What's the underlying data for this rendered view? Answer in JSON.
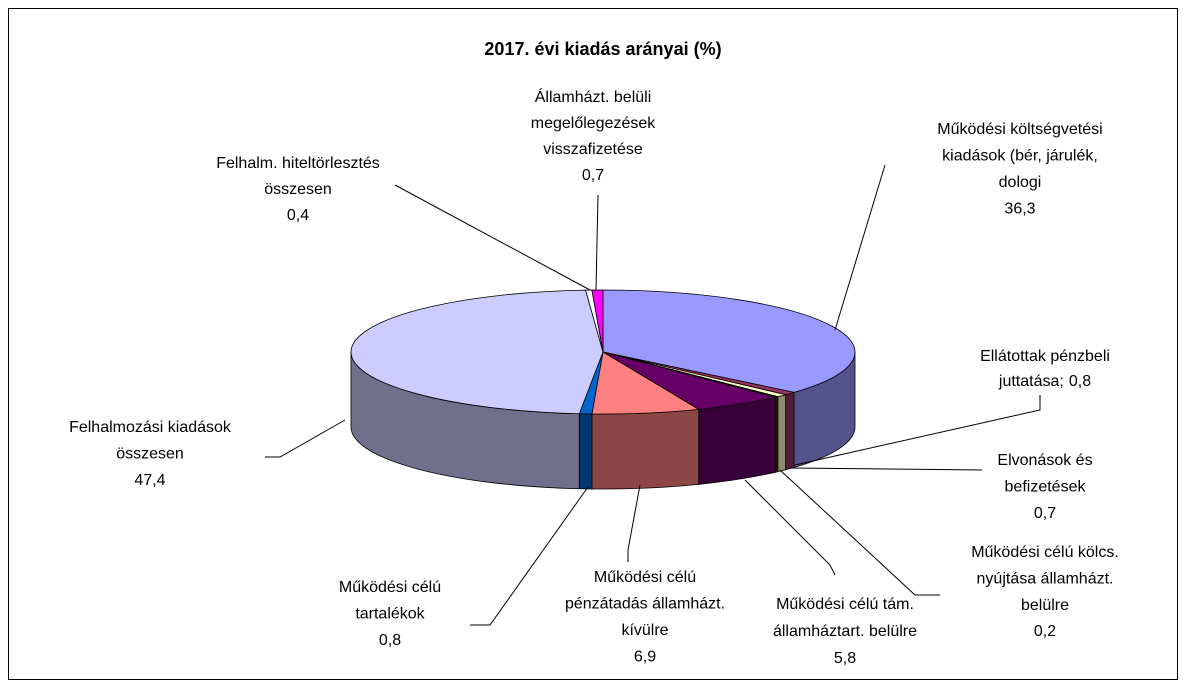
{
  "chart_data": {
    "type": "pie3d",
    "title": "2017. évi kiadás arányai (%)",
    "categories": [
      [
        "Működési költségvetési",
        "kiadások (bér, járulék,",
        "dologi"
      ],
      [
        "Ellátottak pénzbeli",
        "juttatása;"
      ],
      [
        "Elvonások és",
        "befizetések"
      ],
      [
        "Működési célú kölcs.",
        "nyújtása államházt.",
        "belülre"
      ],
      [
        "Működési célú tám.",
        "államháztart. belülre"
      ],
      [
        "Működési célú",
        "pénzátadás államházt.",
        "kívülre"
      ],
      [
        "Működési célú",
        "tartalékok"
      ],
      [
        "Felhalmozási kiadások",
        "összesen"
      ],
      [
        "Felhalm. hiteltörlesztés",
        "összesen"
      ],
      [
        "Államházt. belüli",
        "megelőlegezések",
        "visszafizetése"
      ]
    ],
    "values": [
      36.3,
      0.8,
      0.7,
      0.2,
      5.8,
      6.9,
      0.8,
      47.4,
      0.4,
      0.7
    ],
    "value_labels": [
      "36,3",
      "0,8",
      "0,7",
      "0,2",
      "5,8",
      "6,9",
      "0,8",
      "47,4",
      "0,4",
      "0,7"
    ],
    "colors": [
      "#9999ff",
      "#993366",
      "#ffffcc",
      "#333300",
      "#660066",
      "#ff8080",
      "#0066cc",
      "#ccccff",
      "#ffffff",
      "#ff00ff"
    ]
  }
}
